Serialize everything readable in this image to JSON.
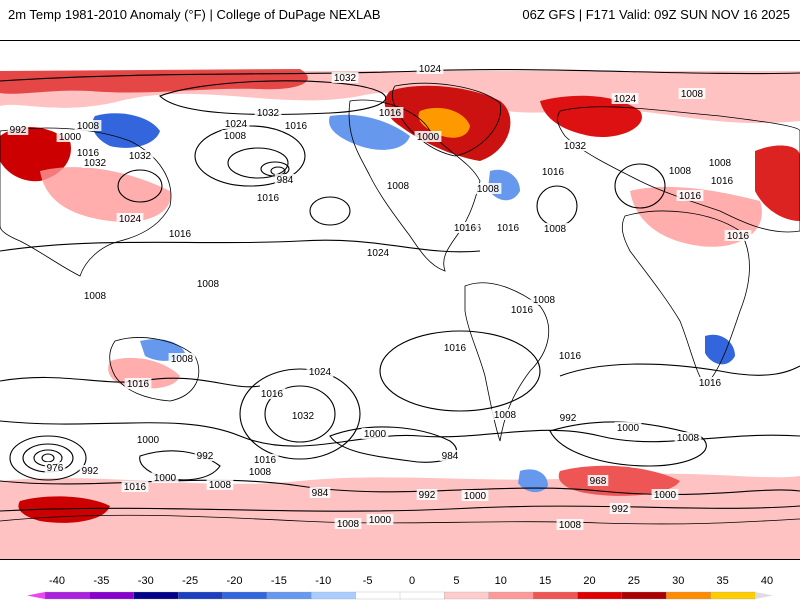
{
  "header": {
    "left_title": "2m Temp 1981-2010 Anomaly (°F) | College of DuPage NEXLAB",
    "right_title": "06Z GFS | F171 Valid: 09Z SUN NOV 16 2025"
  },
  "colors": {
    "background": "#ffffff",
    "land_outline": "#000000",
    "contour": "#000000"
  },
  "isobar_labels": [
    {
      "text": "1024"
    },
    {
      "text": "1032"
    },
    {
      "text": "1024"
    },
    {
      "text": "1008"
    },
    {
      "text": "992"
    },
    {
      "text": "1008"
    },
    {
      "text": "1000"
    },
    {
      "text": "1016"
    },
    {
      "text": "1032"
    },
    {
      "text": "1032"
    },
    {
      "text": "1032"
    },
    {
      "text": "1024"
    },
    {
      "text": "1016"
    },
    {
      "text": "1008"
    },
    {
      "text": "1016"
    },
    {
      "text": "1000"
    },
    {
      "text": "1008"
    },
    {
      "text": "1024"
    },
    {
      "text": "1032"
    },
    {
      "text": "984"
    },
    {
      "text": "1016"
    },
    {
      "text": "1008"
    },
    {
      "text": "1016"
    },
    {
      "text": "1016"
    },
    {
      "text": "1024"
    },
    {
      "text": "1016"
    },
    {
      "text": "1016"
    },
    {
      "text": "1016"
    },
    {
      "text": "1008"
    },
    {
      "text": "1016"
    },
    {
      "text": "1008"
    },
    {
      "text": "1008"
    },
    {
      "text": "1016"
    },
    {
      "text": "1016"
    },
    {
      "text": "1008"
    },
    {
      "text": "1008"
    },
    {
      "text": "1008"
    },
    {
      "text": "1016"
    },
    {
      "text": "1008"
    },
    {
      "text": "1016"
    },
    {
      "text": "1016"
    },
    {
      "text": "1016"
    },
    {
      "text": "1016"
    },
    {
      "text": "1024"
    },
    {
      "text": "1016"
    },
    {
      "text": "1032"
    },
    {
      "text": "1008"
    },
    {
      "text": "992"
    },
    {
      "text": "1000"
    },
    {
      "text": "1000"
    },
    {
      "text": "1008"
    },
    {
      "text": "984"
    },
    {
      "text": "1000"
    },
    {
      "text": "976"
    },
    {
      "text": "992"
    },
    {
      "text": "992"
    },
    {
      "text": "1000"
    },
    {
      "text": "1008"
    },
    {
      "text": "1016"
    },
    {
      "text": "1008"
    },
    {
      "text": "1016"
    },
    {
      "text": "984"
    },
    {
      "text": "992"
    },
    {
      "text": "1000"
    },
    {
      "text": "968"
    },
    {
      "text": "1000"
    },
    {
      "text": "992"
    },
    {
      "text": "1008"
    },
    {
      "text": "1000"
    },
    {
      "text": "1008"
    }
  ],
  "colorbar": {
    "tick_labels": [
      "-40",
      "-35",
      "-30",
      "-25",
      "-20",
      "-15",
      "-10",
      "-5",
      "0",
      "5",
      "10",
      "15",
      "20",
      "25",
      "30",
      "35",
      "40"
    ],
    "colors": [
      "#ee44ee",
      "#aa22dd",
      "#8800cc",
      "#000088",
      "#1c3fbf",
      "#3366dd",
      "#6699ee",
      "#aaccff",
      "#ffffff",
      "#ffffff",
      "#ffcccc",
      "#ff9999",
      "#ee5555",
      "#dd0000",
      "#aa0000",
      "#ff8c00",
      "#ffcc00",
      "#dddddd"
    ]
  }
}
